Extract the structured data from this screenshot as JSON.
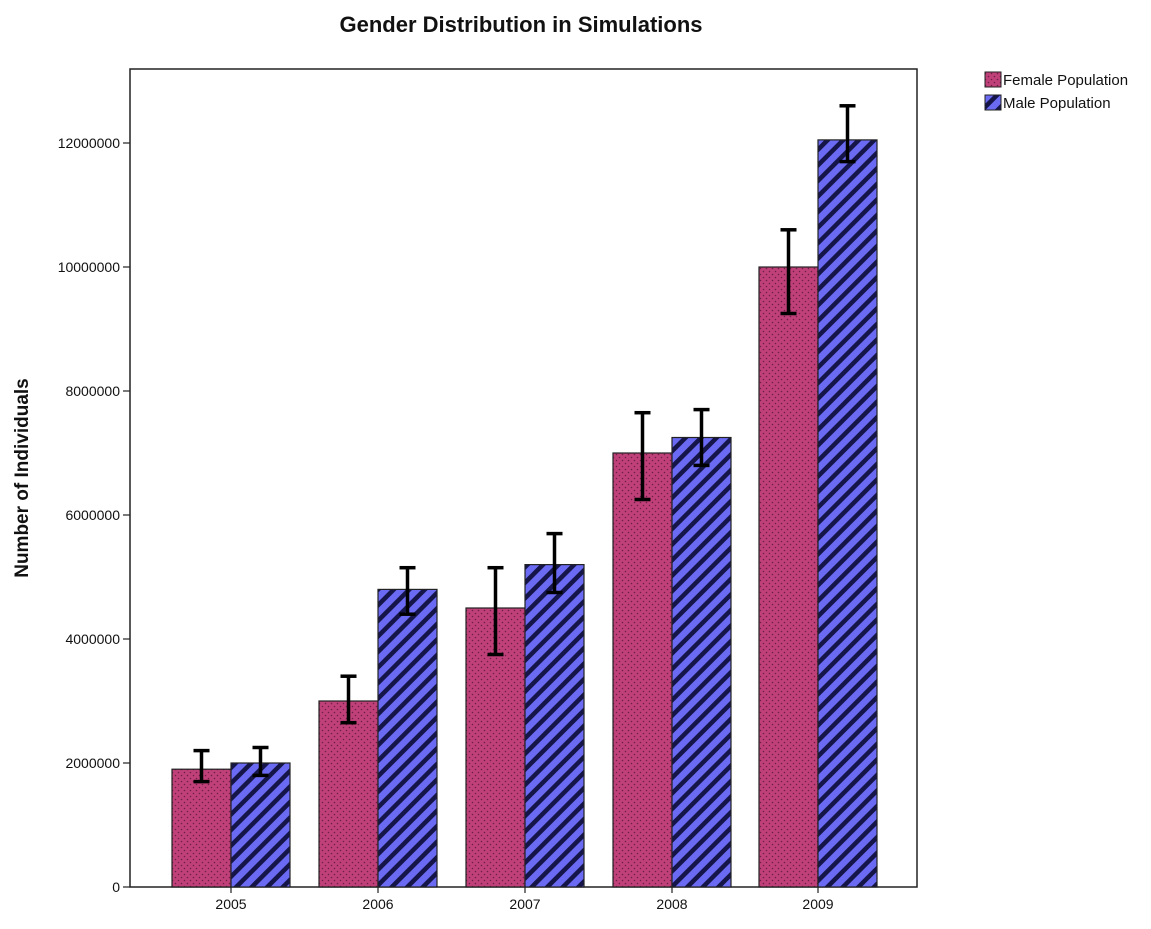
{
  "chart_data": {
    "type": "bar",
    "title": "Gender Distribution in Simulations",
    "xlabel": "",
    "ylabel": "Number of Individuals",
    "categories": [
      "2005",
      "2006",
      "2007",
      "2008",
      "2009"
    ],
    "ylim": [
      0,
      13000000
    ],
    "yticks": [
      0,
      2000000,
      4000000,
      6000000,
      8000000,
      10000000,
      12000000
    ],
    "ytick_labels": [
      "0",
      "2000000",
      "4000000",
      "6000000",
      "8000000",
      "10000000",
      "12000000"
    ],
    "grid": false,
    "legend_position": "top-right",
    "series": [
      {
        "name": "Female Population",
        "color": "#c0407a",
        "pattern": "dots",
        "values": [
          1900000,
          3000000,
          4500000,
          7000000,
          10000000
        ],
        "error_low": [
          1700000,
          2650000,
          3750000,
          6250000,
          9250000
        ],
        "error_high": [
          2200000,
          3400000,
          5150000,
          7650000,
          10600000
        ]
      },
      {
        "name": "Male Population",
        "color": "#5b5bf0",
        "pattern": "diagonal-stripes",
        "values": [
          2000000,
          4800000,
          5200000,
          7250000,
          12050000
        ],
        "error_low": [
          1800000,
          4400000,
          4750000,
          6800000,
          11700000
        ],
        "error_high": [
          2250000,
          5150000,
          5700000,
          7700000,
          12600000
        ]
      }
    ]
  }
}
